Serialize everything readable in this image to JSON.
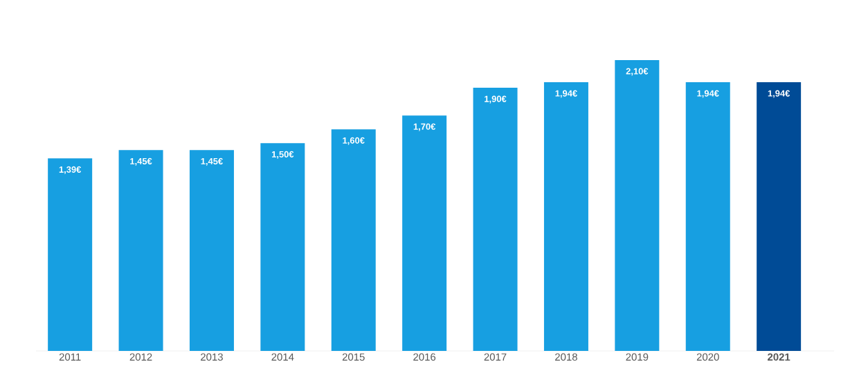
{
  "chart_data": {
    "type": "bar",
    "categories": [
      "2011",
      "2012",
      "2013",
      "2014",
      "2015",
      "2016",
      "2017",
      "2018",
      "2019",
      "2020",
      "**2021**"
    ],
    "values": [
      1.39,
      1.45,
      1.45,
      1.5,
      1.6,
      1.7,
      1.9,
      1.94,
      2.1,
      1.94,
      1.94
    ],
    "value_labels": [
      "1,39€",
      "1,45€",
      "1,45€",
      "1,50€",
      "1,60€",
      "1,70€",
      "1,90€",
      "1,94€",
      "2,10€",
      "1,94€",
      "1,94€"
    ],
    "colors": [
      "#179fe1",
      "#179fe1",
      "#179fe1",
      "#179fe1",
      "#179fe1",
      "#179fe1",
      "#179fe1",
      "#179fe1",
      "#179fe1",
      "#179fe1",
      "#004b96"
    ]
  }
}
